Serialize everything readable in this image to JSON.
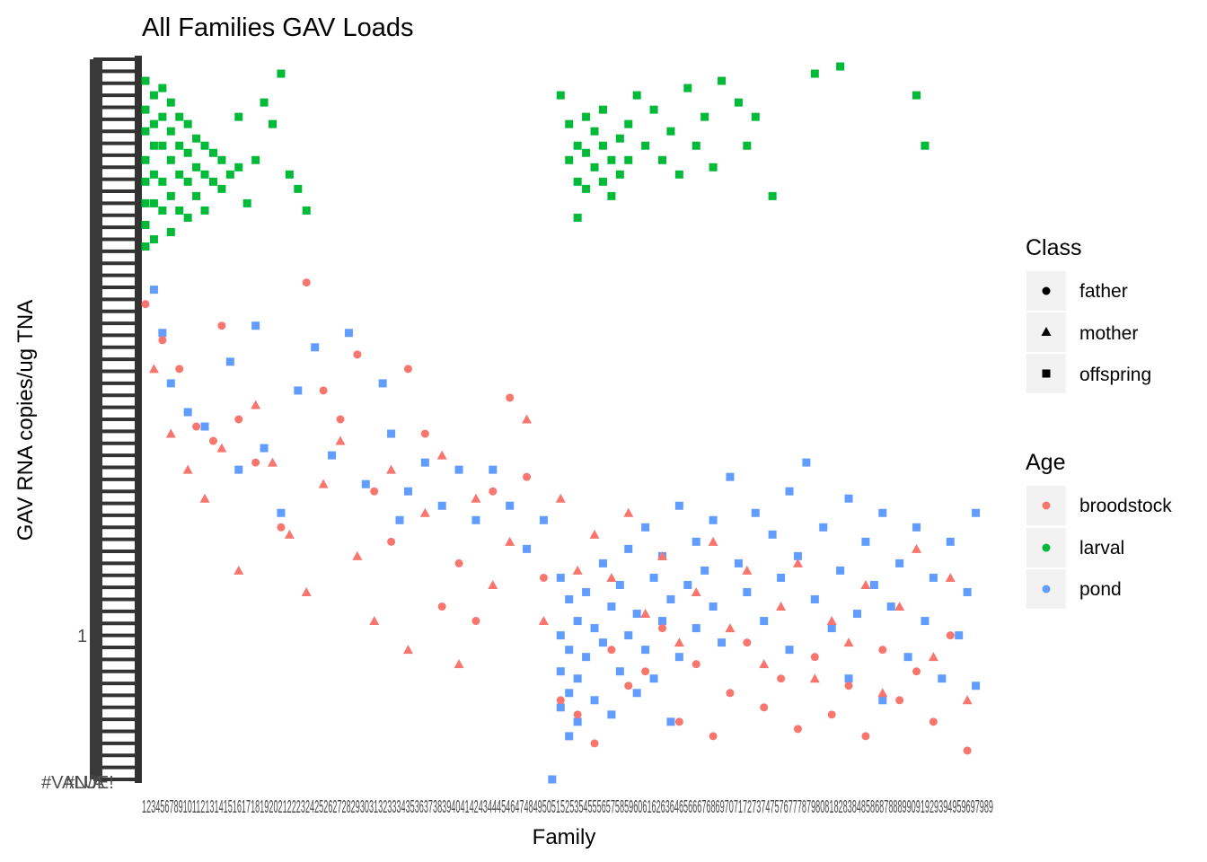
{
  "chart_data": {
    "type": "scatter",
    "title": "All Families GAV Loads",
    "xlabel": "Family",
    "ylabel": "GAV RNA copies/ug TNA",
    "x_tick_text": "1234567891011213141516171819202122232425262728293031323334353637383940414243444546474849505152535455565758596061626364656667686970717273747576777879808182838485868788899091929394959697989",
    "y_tick_labels": [
      "#VALUE!",
      "#N/A",
      "1"
    ],
    "xlim": [
      1,
      100
    ],
    "grid": false,
    "legend_position": "right",
    "legend": {
      "class": {
        "title": "Class",
        "items": [
          {
            "label": "father",
            "shape": "circle"
          },
          {
            "label": "mother",
            "shape": "triangle"
          },
          {
            "label": "offspring",
            "shape": "square"
          }
        ]
      },
      "age": {
        "title": "Age",
        "items": [
          {
            "label": "broodstock",
            "color": "#F8766D"
          },
          {
            "label": "larval",
            "color": "#00BA38"
          },
          {
            "label": "pond",
            "color": "#619CFF"
          }
        ]
      }
    },
    "series": [
      {
        "name": "larval",
        "color": "#00BA38",
        "shape": "square",
        "points": [
          [
            1,
            97
          ],
          [
            1,
            93
          ],
          [
            1,
            90
          ],
          [
            1,
            86
          ],
          [
            1,
            83
          ],
          [
            1,
            80
          ],
          [
            1,
            77
          ],
          [
            1,
            74
          ],
          [
            2,
            95
          ],
          [
            2,
            91
          ],
          [
            2,
            88
          ],
          [
            2,
            84
          ],
          [
            2,
            80
          ],
          [
            2,
            75
          ],
          [
            3,
            96
          ],
          [
            3,
            92
          ],
          [
            3,
            88
          ],
          [
            3,
            83
          ],
          [
            3,
            79
          ],
          [
            4,
            94
          ],
          [
            4,
            90
          ],
          [
            4,
            86
          ],
          [
            4,
            81
          ],
          [
            4,
            76
          ],
          [
            5,
            92
          ],
          [
            5,
            88
          ],
          [
            5,
            84
          ],
          [
            5,
            79
          ],
          [
            6,
            91
          ],
          [
            6,
            87
          ],
          [
            6,
            83
          ],
          [
            6,
            78
          ],
          [
            7,
            89
          ],
          [
            7,
            85
          ],
          [
            7,
            81
          ],
          [
            8,
            88
          ],
          [
            8,
            84
          ],
          [
            8,
            79
          ],
          [
            9,
            87
          ],
          [
            9,
            83
          ],
          [
            10,
            86
          ],
          [
            10,
            82
          ],
          [
            11,
            84
          ],
          [
            12,
            92
          ],
          [
            12,
            85
          ],
          [
            13,
            80
          ],
          [
            14,
            86
          ],
          [
            15,
            94
          ],
          [
            16,
            91
          ],
          [
            17,
            98
          ],
          [
            18,
            84
          ],
          [
            19,
            82
          ],
          [
            20,
            79
          ],
          [
            50,
            95
          ],
          [
            51,
            91
          ],
          [
            51,
            86
          ],
          [
            52,
            88
          ],
          [
            52,
            83
          ],
          [
            52,
            78
          ],
          [
            53,
            92
          ],
          [
            53,
            87
          ],
          [
            53,
            82
          ],
          [
            54,
            90
          ],
          [
            54,
            85
          ],
          [
            55,
            93
          ],
          [
            55,
            88
          ],
          [
            55,
            83
          ],
          [
            56,
            86
          ],
          [
            56,
            81
          ],
          [
            57,
            89
          ],
          [
            57,
            84
          ],
          [
            58,
            91
          ],
          [
            58,
            86
          ],
          [
            59,
            95
          ],
          [
            60,
            88
          ],
          [
            61,
            93
          ],
          [
            62,
            86
          ],
          [
            63,
            90
          ],
          [
            64,
            84
          ],
          [
            65,
            96
          ],
          [
            66,
            88
          ],
          [
            67,
            92
          ],
          [
            68,
            85
          ],
          [
            69,
            97
          ],
          [
            71,
            94
          ],
          [
            72,
            88
          ],
          [
            73,
            92
          ],
          [
            75,
            81
          ],
          [
            80,
            98
          ],
          [
            83,
            99
          ],
          [
            92,
            95
          ],
          [
            93,
            88
          ]
        ]
      },
      {
        "name": "pond",
        "color": "#619CFF",
        "shape": "square",
        "points": [
          [
            2,
            68
          ],
          [
            3,
            62
          ],
          [
            4,
            55
          ],
          [
            6,
            51
          ],
          [
            8,
            49
          ],
          [
            11,
            58
          ],
          [
            12,
            43
          ],
          [
            14,
            63
          ],
          [
            15,
            46
          ],
          [
            17,
            37
          ],
          [
            19,
            54
          ],
          [
            21,
            60
          ],
          [
            23,
            45
          ],
          [
            25,
            62
          ],
          [
            27,
            41
          ],
          [
            29,
            55
          ],
          [
            30,
            48
          ],
          [
            31,
            36
          ],
          [
            32,
            40
          ],
          [
            34,
            44
          ],
          [
            36,
            38
          ],
          [
            38,
            43
          ],
          [
            40,
            36
          ],
          [
            42,
            43
          ],
          [
            44,
            38
          ],
          [
            46,
            32
          ],
          [
            48,
            36
          ],
          [
            49,
            0
          ],
          [
            50,
            28
          ],
          [
            50,
            20
          ],
          [
            50,
            15
          ],
          [
            50,
            10
          ],
          [
            51,
            25
          ],
          [
            51,
            18
          ],
          [
            51,
            12
          ],
          [
            51,
            6
          ],
          [
            52,
            22
          ],
          [
            52,
            14
          ],
          [
            52,
            8
          ],
          [
            53,
            26
          ],
          [
            53,
            17
          ],
          [
            54,
            21
          ],
          [
            54,
            11
          ],
          [
            55,
            30
          ],
          [
            55,
            19
          ],
          [
            56,
            24
          ],
          [
            56,
            9
          ],
          [
            57,
            27
          ],
          [
            57,
            15
          ],
          [
            58,
            32
          ],
          [
            58,
            20
          ],
          [
            59,
            23
          ],
          [
            59,
            12
          ],
          [
            60,
            35
          ],
          [
            60,
            18
          ],
          [
            61,
            28
          ],
          [
            61,
            14
          ],
          [
            62,
            31
          ],
          [
            62,
            22
          ],
          [
            63,
            25
          ],
          [
            63,
            8
          ],
          [
            64,
            38
          ],
          [
            64,
            17
          ],
          [
            65,
            27
          ],
          [
            66,
            33
          ],
          [
            66,
            21
          ],
          [
            67,
            29
          ],
          [
            68,
            36
          ],
          [
            68,
            24
          ],
          [
            69,
            19
          ],
          [
            70,
            42
          ],
          [
            71,
            30
          ],
          [
            72,
            26
          ],
          [
            73,
            37
          ],
          [
            74,
            22
          ],
          [
            75,
            34
          ],
          [
            76,
            28
          ],
          [
            77,
            40
          ],
          [
            77,
            18
          ],
          [
            78,
            31
          ],
          [
            79,
            44
          ],
          [
            80,
            25
          ],
          [
            81,
            35
          ],
          [
            82,
            21
          ],
          [
            83,
            29
          ],
          [
            84,
            39
          ],
          [
            84,
            14
          ],
          [
            85,
            23
          ],
          [
            86,
            33
          ],
          [
            87,
            27
          ],
          [
            88,
            37
          ],
          [
            88,
            11
          ],
          [
            89,
            24
          ],
          [
            90,
            30
          ],
          [
            91,
            17
          ],
          [
            92,
            35
          ],
          [
            93,
            22
          ],
          [
            94,
            28
          ],
          [
            95,
            14
          ],
          [
            96,
            33
          ],
          [
            97,
            20
          ],
          [
            98,
            26
          ],
          [
            99,
            37
          ],
          [
            99,
            13
          ]
        ]
      },
      {
        "name": "broodstock",
        "color": "#F8766D",
        "shape": "circle",
        "points": [
          [
            1,
            66
          ],
          [
            3,
            61
          ],
          [
            5,
            57
          ],
          [
            7,
            49
          ],
          [
            9,
            47
          ],
          [
            10,
            63
          ],
          [
            12,
            50
          ],
          [
            14,
            44
          ],
          [
            17,
            35
          ],
          [
            20,
            69
          ],
          [
            22,
            54
          ],
          [
            24,
            50
          ],
          [
            26,
            59
          ],
          [
            28,
            40
          ],
          [
            30,
            33
          ],
          [
            32,
            57
          ],
          [
            34,
            48
          ],
          [
            36,
            24
          ],
          [
            38,
            30
          ],
          [
            40,
            22
          ],
          [
            42,
            40
          ],
          [
            44,
            53
          ],
          [
            46,
            42
          ],
          [
            48,
            28
          ],
          [
            50,
            11
          ],
          [
            52,
            9
          ],
          [
            54,
            5
          ],
          [
            56,
            18
          ],
          [
            58,
            13
          ],
          [
            60,
            15
          ],
          [
            62,
            21
          ],
          [
            64,
            8
          ],
          [
            66,
            16
          ],
          [
            68,
            6
          ],
          [
            70,
            12
          ],
          [
            72,
            19
          ],
          [
            74,
            10
          ],
          [
            76,
            14
          ],
          [
            78,
            7
          ],
          [
            80,
            17
          ],
          [
            82,
            9
          ],
          [
            84,
            13
          ],
          [
            86,
            6
          ],
          [
            88,
            18
          ],
          [
            90,
            11
          ],
          [
            92,
            15
          ],
          [
            94,
            8
          ],
          [
            96,
            20
          ],
          [
            98,
            4
          ]
        ]
      },
      {
        "name": "broodstock",
        "color": "#F8766D",
        "shape": "triangle",
        "points": [
          [
            2,
            57
          ],
          [
            4,
            48
          ],
          [
            6,
            43
          ],
          [
            8,
            39
          ],
          [
            10,
            46
          ],
          [
            12,
            29
          ],
          [
            14,
            52
          ],
          [
            16,
            44
          ],
          [
            18,
            34
          ],
          [
            20,
            26
          ],
          [
            22,
            41
          ],
          [
            24,
            47
          ],
          [
            26,
            31
          ],
          [
            28,
            22
          ],
          [
            30,
            43
          ],
          [
            32,
            18
          ],
          [
            34,
            37
          ],
          [
            36,
            45
          ],
          [
            38,
            16
          ],
          [
            40,
            39
          ],
          [
            42,
            27
          ],
          [
            44,
            33
          ],
          [
            46,
            50
          ],
          [
            48,
            22
          ],
          [
            50,
            39
          ],
          [
            52,
            29
          ],
          [
            54,
            34
          ],
          [
            56,
            28
          ],
          [
            58,
            37
          ],
          [
            60,
            23
          ],
          [
            62,
            31
          ],
          [
            64,
            19
          ],
          [
            66,
            26
          ],
          [
            68,
            33
          ],
          [
            70,
            21
          ],
          [
            72,
            29
          ],
          [
            74,
            16
          ],
          [
            76,
            24
          ],
          [
            78,
            30
          ],
          [
            80,
            14
          ],
          [
            82,
            22
          ],
          [
            84,
            19
          ],
          [
            86,
            27
          ],
          [
            88,
            12
          ],
          [
            90,
            24
          ],
          [
            92,
            32
          ],
          [
            94,
            17
          ],
          [
            96,
            28
          ],
          [
            98,
            11
          ]
        ]
      }
    ]
  }
}
